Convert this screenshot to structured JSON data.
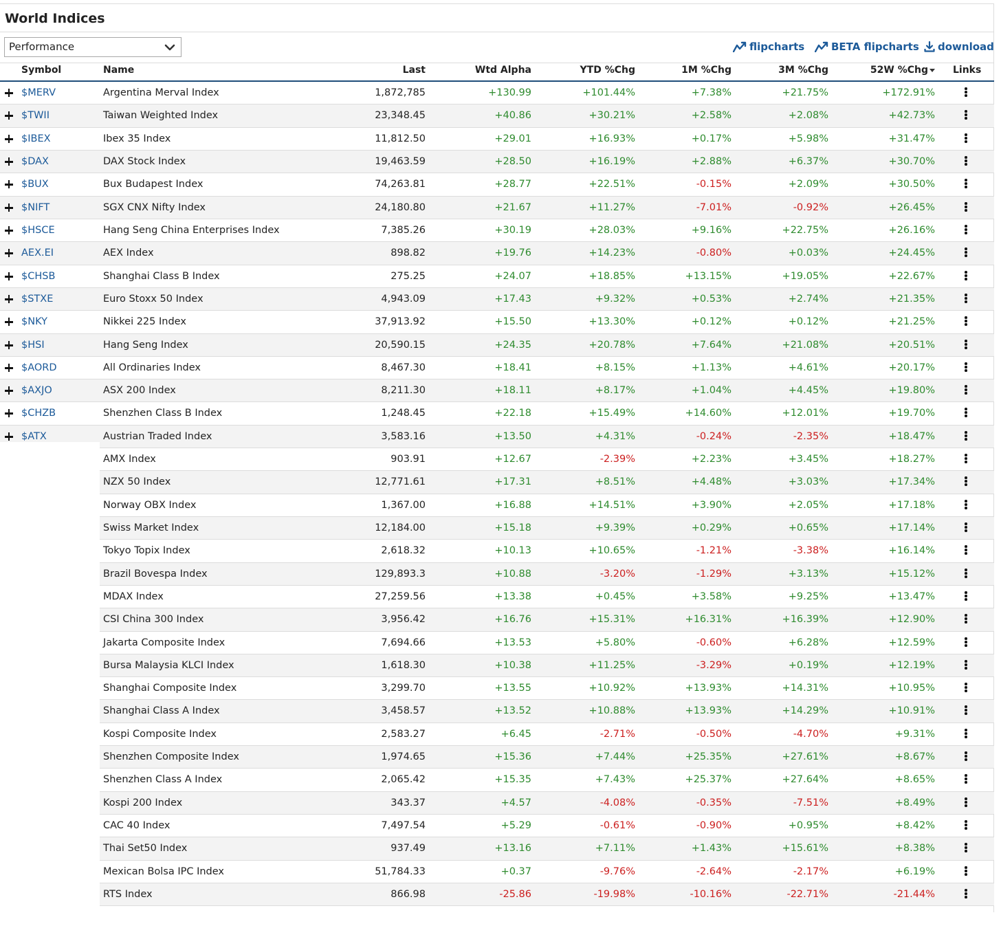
{
  "title": "World Indices",
  "view_select": {
    "value": "Performance"
  },
  "links": {
    "flipcharts": "flipcharts",
    "beta_flipcharts": "BETA flipcharts",
    "download": "download"
  },
  "colors": {
    "link": "#1c5a99",
    "positive": "#2e8b2e",
    "negative": "#cc1f1f",
    "header_rule": "#1f4e7a"
  },
  "columns": {
    "symbol": "Symbol",
    "name": "Name",
    "last": "Last",
    "wtd_alpha": "Wtd Alpha",
    "ytd": "YTD %Chg",
    "m1": "1M %Chg",
    "m3": "3M %Chg",
    "w52": "52W %Chg",
    "links": "Links"
  },
  "rows": [
    {
      "symbol": "$MERV",
      "name": "Argentina Merval Index",
      "last": "1,872,785",
      "wtd": "+130.99",
      "ytd": "+101.44%",
      "m1": "+7.38%",
      "m3": "+21.75%",
      "w52": "+172.91%"
    },
    {
      "symbol": "$TWII",
      "name": "Taiwan Weighted Index",
      "last": "23,348.45",
      "wtd": "+40.86",
      "ytd": "+30.21%",
      "m1": "+2.58%",
      "m3": "+2.08%",
      "w52": "+42.73%"
    },
    {
      "symbol": "$IBEX",
      "name": "Ibex 35 Index",
      "last": "11,812.50",
      "wtd": "+29.01",
      "ytd": "+16.93%",
      "m1": "+0.17%",
      "m3": "+5.98%",
      "w52": "+31.47%"
    },
    {
      "symbol": "$DAX",
      "name": "DAX Stock Index",
      "last": "19,463.59",
      "wtd": "+28.50",
      "ytd": "+16.19%",
      "m1": "+2.88%",
      "m3": "+6.37%",
      "w52": "+30.70%"
    },
    {
      "symbol": "$BUX",
      "name": "Bux Budapest Index",
      "last": "74,263.81",
      "wtd": "+28.77",
      "ytd": "+22.51%",
      "m1": "-0.15%",
      "m3": "+2.09%",
      "w52": "+30.50%"
    },
    {
      "symbol": "$NIFT",
      "name": "SGX CNX Nifty Index",
      "last": "24,180.80",
      "wtd": "+21.67",
      "ytd": "+11.27%",
      "m1": "-7.01%",
      "m3": "-0.92%",
      "w52": "+26.45%"
    },
    {
      "symbol": "$HSCE",
      "name": "Hang Seng China Enterprises Index",
      "last": "7,385.26",
      "wtd": "+30.19",
      "ytd": "+28.03%",
      "m1": "+9.16%",
      "m3": "+22.75%",
      "w52": "+26.16%"
    },
    {
      "symbol": "AEX.EI",
      "name": "AEX Index",
      "last": "898.82",
      "wtd": "+19.76",
      "ytd": "+14.23%",
      "m1": "-0.80%",
      "m3": "+0.03%",
      "w52": "+24.45%"
    },
    {
      "symbol": "$CHSB",
      "name": "Shanghai Class B Index",
      "last": "275.25",
      "wtd": "+24.07",
      "ytd": "+18.85%",
      "m1": "+13.15%",
      "m3": "+19.05%",
      "w52": "+22.67%"
    },
    {
      "symbol": "$STXE",
      "name": "Euro Stoxx 50 Index",
      "last": "4,943.09",
      "wtd": "+17.43",
      "ytd": "+9.32%",
      "m1": "+0.53%",
      "m3": "+2.74%",
      "w52": "+21.35%"
    },
    {
      "symbol": "$NKY",
      "name": "Nikkei 225 Index",
      "last": "37,913.92",
      "wtd": "+15.50",
      "ytd": "+13.30%",
      "m1": "+0.12%",
      "m3": "+0.12%",
      "w52": "+21.25%"
    },
    {
      "symbol": "$HSI",
      "name": "Hang Seng Index",
      "last": "20,590.15",
      "wtd": "+24.35",
      "ytd": "+20.78%",
      "m1": "+7.64%",
      "m3": "+21.08%",
      "w52": "+20.51%"
    },
    {
      "symbol": "$AORD",
      "name": "All Ordinaries Index",
      "last": "8,467.30",
      "wtd": "+18.41",
      "ytd": "+8.15%",
      "m1": "+1.13%",
      "m3": "+4.61%",
      "w52": "+20.17%"
    },
    {
      "symbol": "$AXJO",
      "name": "ASX 200 Index",
      "last": "8,211.30",
      "wtd": "+18.11",
      "ytd": "+8.17%",
      "m1": "+1.04%",
      "m3": "+4.45%",
      "w52": "+19.80%"
    },
    {
      "symbol": "$CHZB",
      "name": "Shenzhen Class B Index",
      "last": "1,248.45",
      "wtd": "+22.18",
      "ytd": "+15.49%",
      "m1": "+14.60%",
      "m3": "+12.01%",
      "w52": "+19.70%"
    },
    {
      "symbol": "$ATX",
      "name": "Austrian Traded Index",
      "last": "3,583.16",
      "wtd": "+13.50",
      "ytd": "+4.31%",
      "m1": "-0.24%",
      "m3": "-2.35%",
      "w52": "+18.47%"
    },
    {
      "symbol": "",
      "name": "AMX Index",
      "last": "903.91",
      "wtd": "+12.67",
      "ytd": "-2.39%",
      "m1": "+2.23%",
      "m3": "+3.45%",
      "w52": "+18.27%"
    },
    {
      "symbol": "",
      "name": "NZX 50 Index",
      "last": "12,771.61",
      "wtd": "+17.31",
      "ytd": "+8.51%",
      "m1": "+4.48%",
      "m3": "+3.03%",
      "w52": "+17.34%"
    },
    {
      "symbol": "",
      "name": "Norway OBX Index",
      "last": "1,367.00",
      "wtd": "+16.88",
      "ytd": "+14.51%",
      "m1": "+3.90%",
      "m3": "+2.05%",
      "w52": "+17.18%"
    },
    {
      "symbol": "",
      "name": "Swiss Market Index",
      "last": "12,184.00",
      "wtd": "+15.18",
      "ytd": "+9.39%",
      "m1": "+0.29%",
      "m3": "+0.65%",
      "w52": "+17.14%"
    },
    {
      "symbol": "",
      "name": "Tokyo Topix Index",
      "last": "2,618.32",
      "wtd": "+10.13",
      "ytd": "+10.65%",
      "m1": "-1.21%",
      "m3": "-3.38%",
      "w52": "+16.14%"
    },
    {
      "symbol": "",
      "name": "Brazil Bovespa Index",
      "last": "129,893.3",
      "wtd": "+10.88",
      "ytd": "-3.20%",
      "m1": "-1.29%",
      "m3": "+3.13%",
      "w52": "+15.12%"
    },
    {
      "symbol": "",
      "name": "MDAX Index",
      "last": "27,259.56",
      "wtd": "+13.38",
      "ytd": "+0.45%",
      "m1": "+3.58%",
      "m3": "+9.25%",
      "w52": "+13.47%"
    },
    {
      "symbol": "",
      "name": "CSI China 300 Index",
      "last": "3,956.42",
      "wtd": "+16.76",
      "ytd": "+15.31%",
      "m1": "+16.31%",
      "m3": "+16.39%",
      "w52": "+12.90%"
    },
    {
      "symbol": "",
      "name": "Jakarta Composite Index",
      "last": "7,694.66",
      "wtd": "+13.53",
      "ytd": "+5.80%",
      "m1": "-0.60%",
      "m3": "+6.28%",
      "w52": "+12.59%"
    },
    {
      "symbol": "",
      "name": "Bursa Malaysia KLCI Index",
      "last": "1,618.30",
      "wtd": "+10.38",
      "ytd": "+11.25%",
      "m1": "-3.29%",
      "m3": "+0.19%",
      "w52": "+12.19%"
    },
    {
      "symbol": "",
      "name": "Shanghai Composite Index",
      "last": "3,299.70",
      "wtd": "+13.55",
      "ytd": "+10.92%",
      "m1": "+13.93%",
      "m3": "+14.31%",
      "w52": "+10.95%"
    },
    {
      "symbol": "",
      "name": "Shanghai Class A Index",
      "last": "3,458.57",
      "wtd": "+13.52",
      "ytd": "+10.88%",
      "m1": "+13.93%",
      "m3": "+14.29%",
      "w52": "+10.91%"
    },
    {
      "symbol": "",
      "name": "Kospi Composite Index",
      "last": "2,583.27",
      "wtd": "+6.45",
      "ytd": "-2.71%",
      "m1": "-0.50%",
      "m3": "-4.70%",
      "w52": "+9.31%"
    },
    {
      "symbol": "",
      "name": "Shenzhen Composite Index",
      "last": "1,974.65",
      "wtd": "+15.36",
      "ytd": "+7.44%",
      "m1": "+25.35%",
      "m3": "+27.61%",
      "w52": "+8.67%"
    },
    {
      "symbol": "",
      "name": "Shenzhen Class A Index",
      "last": "2,065.42",
      "wtd": "+15.35",
      "ytd": "+7.43%",
      "m1": "+25.37%",
      "m3": "+27.64%",
      "w52": "+8.65%"
    },
    {
      "symbol": "",
      "name": "Kospi 200 Index",
      "last": "343.37",
      "wtd": "+4.57",
      "ytd": "-4.08%",
      "m1": "-0.35%",
      "m3": "-7.51%",
      "w52": "+8.49%"
    },
    {
      "symbol": "",
      "name": "CAC 40 Index",
      "last": "7,497.54",
      "wtd": "+5.29",
      "ytd": "-0.61%",
      "m1": "-0.90%",
      "m3": "+0.95%",
      "w52": "+8.42%"
    },
    {
      "symbol": "",
      "name": "Thai Set50 Index",
      "last": "937.49",
      "wtd": "+13.16",
      "ytd": "+7.11%",
      "m1": "+1.43%",
      "m3": "+15.61%",
      "w52": "+8.38%"
    },
    {
      "symbol": "",
      "name": "Mexican Bolsa IPC Index",
      "last": "51,784.33",
      "wtd": "+0.37",
      "ytd": "-9.76%",
      "m1": "-2.64%",
      "m3": "-2.17%",
      "w52": "+6.19%"
    },
    {
      "symbol": "",
      "name": "RTS Index",
      "last": "866.98",
      "wtd": "-25.86",
      "ytd": "-19.98%",
      "m1": "-10.16%",
      "m3": "-22.71%",
      "w52": "-21.44%"
    }
  ]
}
